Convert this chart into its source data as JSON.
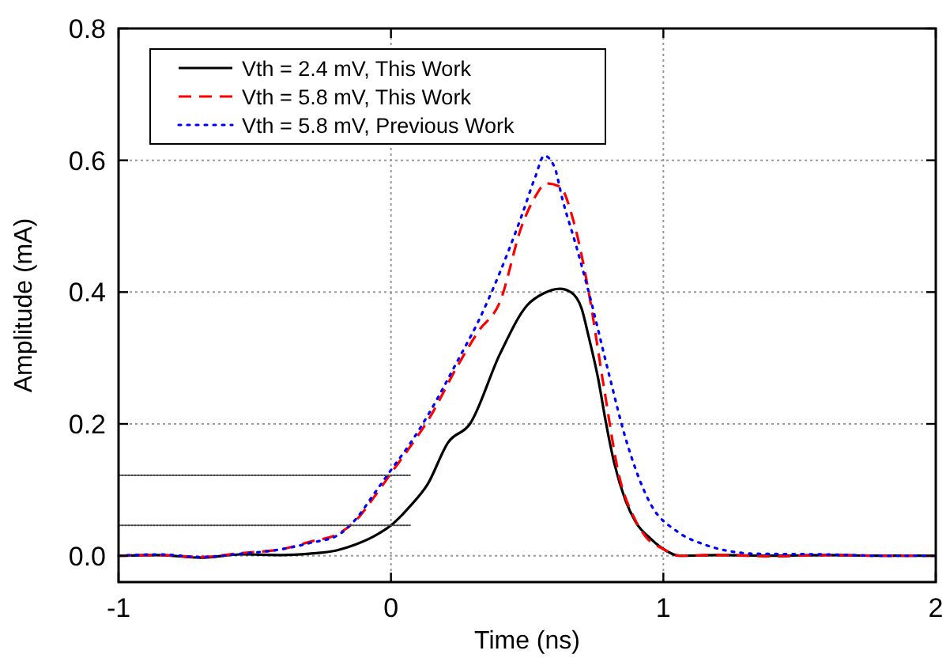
{
  "chart_data": {
    "type": "line",
    "xlabel": "Time (ns)",
    "ylabel": "Amplitude (mA)",
    "xlim": [
      -1,
      2
    ],
    "xticks": [
      -1,
      0,
      1,
      2
    ],
    "ylim": [
      -0.04,
      0.8
    ],
    "yticks": [
      {
        "value": 0,
        "label": "0.0"
      },
      {
        "value": 0.2,
        "label": "0.2"
      },
      {
        "value": 0.4,
        "label": "0.4"
      },
      {
        "value": 0.6,
        "label": "0.6"
      },
      {
        "value": 0.8,
        "label": "0.8"
      }
    ],
    "grid": true,
    "legend": "top left",
    "series": [
      {
        "name": "Vth = 2.4 mV, This Work",
        "color": "#000000",
        "line_style": "solid",
        "x": [
          -1,
          -0.85,
          -0.7,
          -0.55,
          -0.4,
          -0.3,
          -0.2,
          -0.13,
          -0.06,
          0,
          0.07,
          0.134,
          0.21,
          0.29,
          0.4,
          0.5,
          0.56,
          0.62,
          0.66,
          0.7,
          0.726,
          0.76,
          0.79,
          0.82,
          0.86,
          0.9,
          0.95,
          0.99,
          1.06,
          1.2,
          1.4,
          1.6,
          1.8,
          2
        ],
        "values": [
          0,
          0.001,
          -0.003,
          0.002,
          0.001,
          0.003,
          0.008,
          0.017,
          0.03,
          0.046,
          0.075,
          0.108,
          0.172,
          0.2,
          0.306,
          0.38,
          0.398,
          0.405,
          0.4,
          0.375,
          0.332,
          0.27,
          0.2,
          0.14,
          0.085,
          0.05,
          0.027,
          0.013,
          0,
          0.001,
          0,
          0.001,
          0,
          0
        ]
      },
      {
        "name": "Vth = 5.8 mV, This Work",
        "color": "#ff0000",
        "line_style": "dashed",
        "x": [
          -1,
          -0.85,
          -0.7,
          -0.55,
          -0.4,
          -0.29,
          -0.2,
          -0.13,
          -0.06,
          0,
          0.07,
          0.134,
          0.25,
          0.32,
          0.4,
          0.48,
          0.53,
          0.57,
          0.62,
          0.67,
          0.726,
          0.78,
          0.84,
          0.89,
          0.935,
          1.0,
          1.06,
          1.2,
          1.4,
          1.6,
          1.8,
          2
        ],
        "values": [
          0,
          0.001,
          -0.002,
          0.004,
          0.01,
          0.022,
          0.032,
          0.053,
          0.09,
          0.125,
          0.165,
          0.204,
          0.292,
          0.34,
          0.385,
          0.5,
          0.545,
          0.565,
          0.56,
          0.508,
          0.4,
          0.26,
          0.117,
          0.06,
          0.029,
          0.01,
          0,
          0.001,
          -0.001,
          0.001,
          0,
          0
        ]
      },
      {
        "name": "Vth = 5.8 mV, Previous Work",
        "color": "#0000ff",
        "line_style": "dotted",
        "x": [
          -1,
          -0.85,
          -0.7,
          -0.55,
          -0.4,
          -0.29,
          -0.2,
          -0.13,
          -0.06,
          0,
          0.07,
          0.134,
          0.25,
          0.32,
          0.4,
          0.48,
          0.53,
          0.563,
          0.6,
          0.63,
          0.68,
          0.726,
          0.8,
          0.86,
          0.955,
          1.05,
          1.15,
          1.34,
          1.6,
          1.8,
          2
        ],
        "values": [
          0,
          0.002,
          -0.002,
          0.003,
          0.01,
          0.02,
          0.03,
          0.055,
          0.095,
          0.13,
          0.17,
          0.212,
          0.3,
          0.355,
          0.43,
          0.516,
          0.575,
          0.607,
          0.59,
          0.54,
          0.47,
          0.4,
          0.276,
          0.18,
          0.077,
          0.037,
          0.017,
          0.003,
          0.002,
          0,
          0
        ]
      },
      {
        "color": "#444444",
        "line_style": "dotted",
        "x": [
          -1,
          0.07
        ],
        "values": [
          0.122,
          0.122
        ]
      },
      {
        "color": "#444444",
        "line_style": "dotted",
        "x": [
          -1,
          0.07
        ],
        "values": [
          0.046,
          0.046
        ]
      }
    ]
  }
}
